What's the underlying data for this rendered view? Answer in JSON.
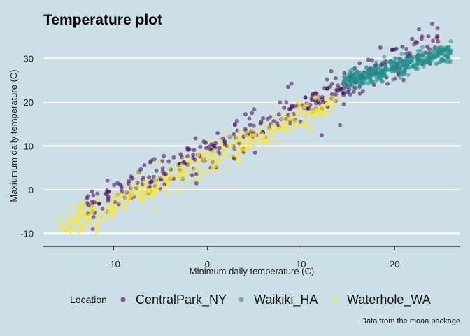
{
  "chart_data": {
    "type": "scatter",
    "title": "Temperature plot",
    "xlabel": "Minimum daily temperature (C)",
    "ylabel": "Maxiumum daily temperature (C)",
    "caption": "Data from the moaa package",
    "xlim": [
      -17.5,
      27
    ],
    "ylim": [
      -13,
      36
    ],
    "x_ticks": [
      -10,
      0,
      10,
      20
    ],
    "y_ticks": [
      -10,
      0,
      10,
      20,
      30
    ],
    "grid": "horizontal major lines, white",
    "legend": {
      "title": "Location",
      "position": "bottom"
    },
    "series": [
      {
        "name": "CentralPark_NY",
        "color": "#440154",
        "generator": {
          "x_range": [
            -13,
            25
          ],
          "slope": 1.0,
          "intercept": 9.0,
          "noise": 3.8,
          "count": 365
        }
      },
      {
        "name": "Waikiki_HA",
        "color": "#21908C",
        "generator": {
          "x_range": [
            14.5,
            26
          ],
          "slope": 0.6,
          "intercept": 16.0,
          "noise": 2.0,
          "count": 365
        }
      },
      {
        "name": "Waterhole_WA",
        "color": "#FDE725",
        "generator": {
          "x_range": [
            -16,
            14
          ],
          "slope": 1.0,
          "intercept": 6.5,
          "noise": 2.8,
          "count": 365
        }
      }
    ]
  }
}
